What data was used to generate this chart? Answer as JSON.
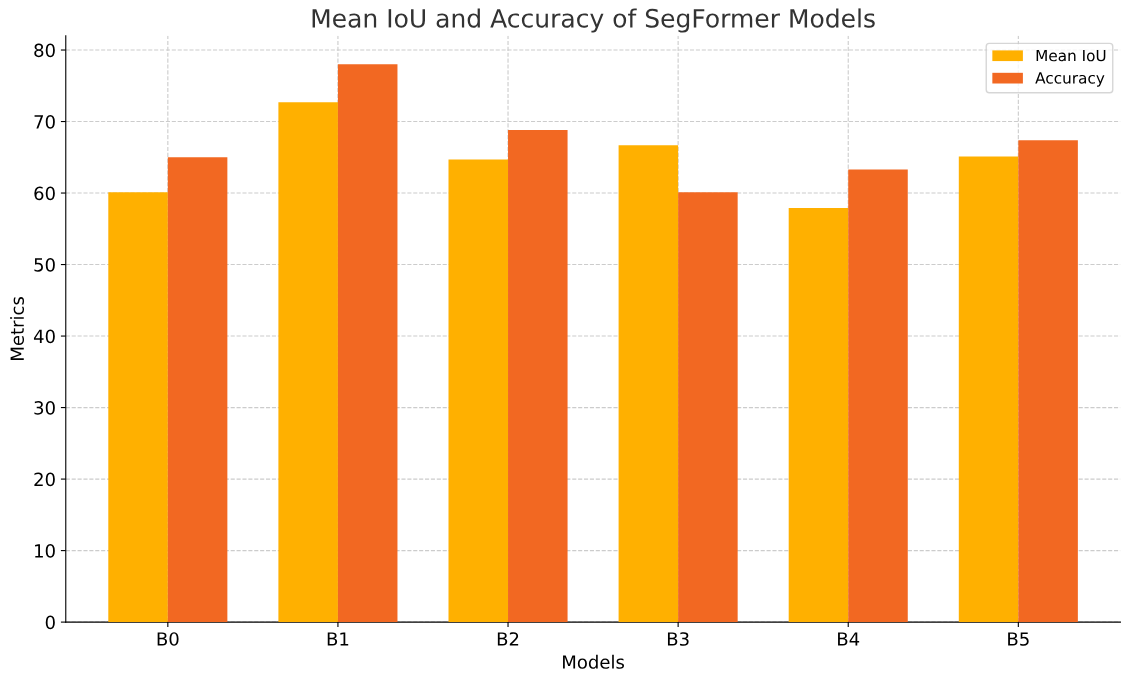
{
  "chart_data": {
    "type": "bar",
    "title": "Mean IoU and Accuracy of SegFormer Models",
    "xlabel": "Models",
    "ylabel": "Metrics",
    "categories": [
      "B0",
      "B1",
      "B2",
      "B3",
      "B4",
      "B5"
    ],
    "series": [
      {
        "name": "Mean IoU",
        "color": "#ffb000",
        "values": [
          60.1,
          72.7,
          64.7,
          66.7,
          57.9,
          65.1
        ]
      },
      {
        "name": "Accuracy",
        "color": "#f26822",
        "values": [
          65.0,
          78.0,
          68.8,
          60.1,
          63.3,
          67.4
        ]
      }
    ],
    "ylim": [
      0,
      82
    ],
    "yticks": [
      0,
      10,
      20,
      30,
      40,
      50,
      60,
      70,
      80
    ],
    "grid": true,
    "legend": "top right"
  }
}
